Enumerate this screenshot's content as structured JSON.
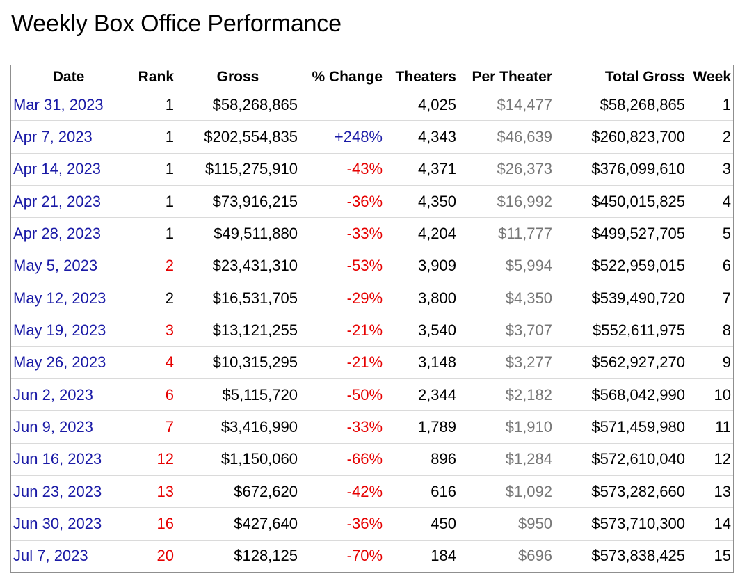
{
  "page": {
    "title": "Weekly Box Office Performance"
  },
  "table": {
    "headers": {
      "date": "Date",
      "rank": "Rank",
      "gross": "Gross",
      "change": "% Change",
      "theaters": "Theaters",
      "per_theater": "Per Theater",
      "total_gross": "Total Gross",
      "week": "Week"
    },
    "colors": {
      "link": "#1a1aa6",
      "negative": "#e60000",
      "muted": "#777777"
    },
    "rows": [
      {
        "date": "Mar 31, 2023",
        "rank": "1",
        "rank_changed": false,
        "gross": "$58,268,865",
        "change": "",
        "change_dir": "none",
        "theaters": "4,025",
        "per_theater": "$14,477",
        "total_gross": "$58,268,865",
        "week": "1"
      },
      {
        "date": "Apr 7, 2023",
        "rank": "1",
        "rank_changed": false,
        "gross": "$202,554,835",
        "change": "+248%",
        "change_dir": "up",
        "theaters": "4,343",
        "per_theater": "$46,639",
        "total_gross": "$260,823,700",
        "week": "2"
      },
      {
        "date": "Apr 14, 2023",
        "rank": "1",
        "rank_changed": false,
        "gross": "$115,275,910",
        "change": "-43%",
        "change_dir": "down",
        "theaters": "4,371",
        "per_theater": "$26,373",
        "total_gross": "$376,099,610",
        "week": "3"
      },
      {
        "date": "Apr 21, 2023",
        "rank": "1",
        "rank_changed": false,
        "gross": "$73,916,215",
        "change": "-36%",
        "change_dir": "down",
        "theaters": "4,350",
        "per_theater": "$16,992",
        "total_gross": "$450,015,825",
        "week": "4"
      },
      {
        "date": "Apr 28, 2023",
        "rank": "1",
        "rank_changed": false,
        "gross": "$49,511,880",
        "change": "-33%",
        "change_dir": "down",
        "theaters": "4,204",
        "per_theater": "$11,777",
        "total_gross": "$499,527,705",
        "week": "5"
      },
      {
        "date": "May 5, 2023",
        "rank": "2",
        "rank_changed": true,
        "gross": "$23,431,310",
        "change": "-53%",
        "change_dir": "down",
        "theaters": "3,909",
        "per_theater": "$5,994",
        "total_gross": "$522,959,015",
        "week": "6"
      },
      {
        "date": "May 12, 2023",
        "rank": "2",
        "rank_changed": false,
        "gross": "$16,531,705",
        "change": "-29%",
        "change_dir": "down",
        "theaters": "3,800",
        "per_theater": "$4,350",
        "total_gross": "$539,490,720",
        "week": "7"
      },
      {
        "date": "May 19, 2023",
        "rank": "3",
        "rank_changed": true,
        "gross": "$13,121,255",
        "change": "-21%",
        "change_dir": "down",
        "theaters": "3,540",
        "per_theater": "$3,707",
        "total_gross": "$552,611,975",
        "week": "8"
      },
      {
        "date": "May 26, 2023",
        "rank": "4",
        "rank_changed": true,
        "gross": "$10,315,295",
        "change": "-21%",
        "change_dir": "down",
        "theaters": "3,148",
        "per_theater": "$3,277",
        "total_gross": "$562,927,270",
        "week": "9"
      },
      {
        "date": "Jun 2, 2023",
        "rank": "6",
        "rank_changed": true,
        "gross": "$5,115,720",
        "change": "-50%",
        "change_dir": "down",
        "theaters": "2,344",
        "per_theater": "$2,182",
        "total_gross": "$568,042,990",
        "week": "10"
      },
      {
        "date": "Jun 9, 2023",
        "rank": "7",
        "rank_changed": true,
        "gross": "$3,416,990",
        "change": "-33%",
        "change_dir": "down",
        "theaters": "1,789",
        "per_theater": "$1,910",
        "total_gross": "$571,459,980",
        "week": "11"
      },
      {
        "date": "Jun 16, 2023",
        "rank": "12",
        "rank_changed": true,
        "gross": "$1,150,060",
        "change": "-66%",
        "change_dir": "down",
        "theaters": "896",
        "per_theater": "$1,284",
        "total_gross": "$572,610,040",
        "week": "12"
      },
      {
        "date": "Jun 23, 2023",
        "rank": "13",
        "rank_changed": true,
        "gross": "$672,620",
        "change": "-42%",
        "change_dir": "down",
        "theaters": "616",
        "per_theater": "$1,092",
        "total_gross": "$573,282,660",
        "week": "13"
      },
      {
        "date": "Jun 30, 2023",
        "rank": "16",
        "rank_changed": true,
        "gross": "$427,640",
        "change": "-36%",
        "change_dir": "down",
        "theaters": "450",
        "per_theater": "$950",
        "total_gross": "$573,710,300",
        "week": "14"
      },
      {
        "date": "Jul 7, 2023",
        "rank": "20",
        "rank_changed": true,
        "gross": "$128,125",
        "change": "-70%",
        "change_dir": "down",
        "theaters": "184",
        "per_theater": "$696",
        "total_gross": "$573,838,425",
        "week": "15"
      }
    ]
  }
}
